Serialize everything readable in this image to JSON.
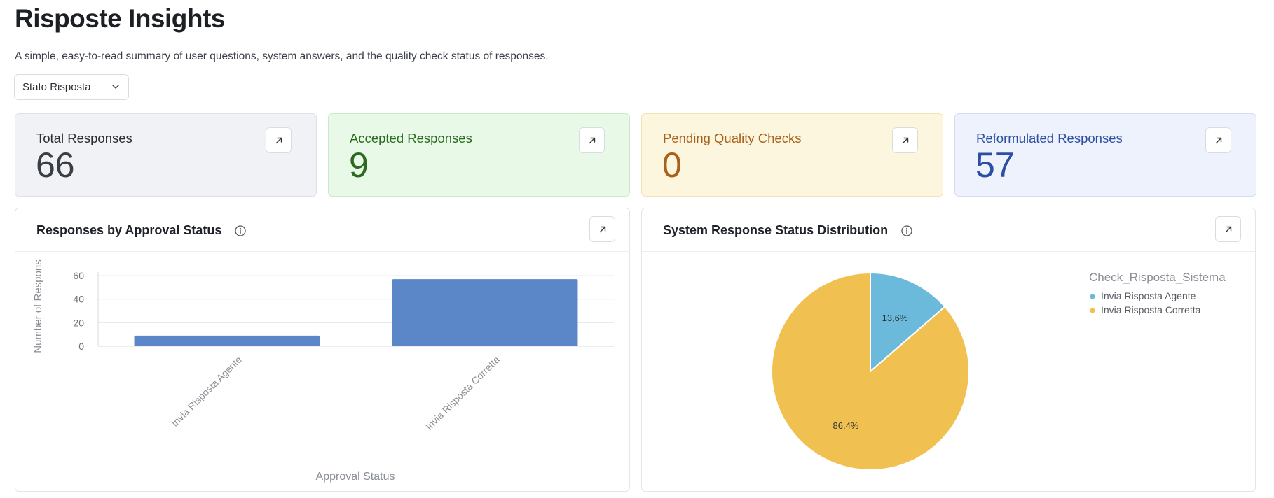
{
  "page": {
    "title": "Risposte Insights",
    "subtitle": "A simple, easy-to-read summary of user questions, system answers, and the quality check status of responses."
  },
  "filter": {
    "label": "Stato Risposta"
  },
  "kpis": [
    {
      "label": "Total Responses",
      "value": "66",
      "color": "#3a3e45"
    },
    {
      "label": "Accepted Responses",
      "value": "9",
      "color": "#2b6a1f"
    },
    {
      "label": "Pending Quality Checks",
      "value": "0",
      "color": "#a8611a"
    },
    {
      "label": "Reformulated Responses",
      "value": "57",
      "color": "#2d4ea3"
    }
  ],
  "panels": {
    "bar": {
      "title": "Responses by Approval Status"
    },
    "pie": {
      "title": "System Response Status Distribution"
    }
  },
  "chart_data": [
    {
      "type": "bar",
      "categories": [
        "Invia Risposta Agente",
        "Invia Risposta Corretta"
      ],
      "values": [
        9,
        57
      ],
      "xlabel": "Approval Status",
      "ylabel": "Number of Respons",
      "yticks": [
        "0",
        "20",
        "40",
        "60"
      ],
      "ylim": [
        0,
        63
      ],
      "color": "#5b87c8",
      "grid": true
    },
    {
      "type": "pie",
      "legend_title": "Check_Risposta_Sistema",
      "legend_position": "top-right",
      "labels": [
        "Invia Risposta Agente",
        "Invia Risposta Corretta"
      ],
      "values": [
        13.6,
        86.4
      ],
      "value_labels": [
        "13,6%",
        "86,4%"
      ],
      "colors": [
        "#6bbadc",
        "#f0c150"
      ]
    }
  ]
}
